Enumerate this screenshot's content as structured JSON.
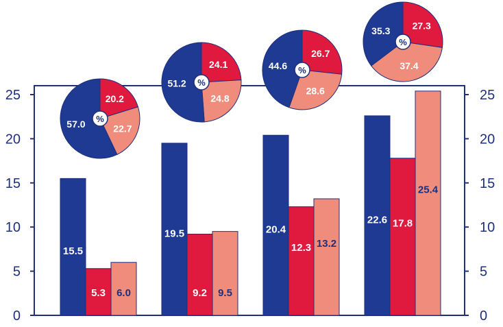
{
  "chart_data": {
    "type": "bar",
    "categories": [
      "",
      "",
      "",
      ""
    ],
    "series": [
      {
        "values": [
          15.5,
          19.5,
          20.4,
          22.6
        ]
      },
      {
        "values": [
          5.3,
          9.2,
          12.3,
          17.8
        ]
      },
      {
        "values": [
          6.0,
          9.5,
          13.2,
          25.4
        ]
      }
    ],
    "colors": [
      "#1f3a93",
      "#e0193f",
      "#ef8c7c"
    ],
    "label_colors": [
      "#ffffff",
      "#ffffff",
      "#1f2f7a"
    ],
    "ylim": [
      0,
      25
    ],
    "yticks": [
      "0",
      "5",
      "10",
      "15",
      "20",
      "25"
    ],
    "grid": false,
    "pies": [
      {
        "center_label": "%",
        "values": [
          57.0,
          20.2,
          22.7
        ],
        "labels": [
          "57.0",
          "20.2",
          "22.7"
        ]
      },
      {
        "center_label": "%",
        "values": [
          51.2,
          24.1,
          24.8
        ],
        "labels": [
          "51.2",
          "24.1",
          "24.8"
        ]
      },
      {
        "center_label": "%",
        "values": [
          44.6,
          26.7,
          28.6
        ],
        "labels": [
          "44.6",
          "26.7",
          "28.6"
        ]
      },
      {
        "center_label": "%",
        "values": [
          35.3,
          27.3,
          37.4
        ],
        "labels": [
          "35.3",
          "27.3",
          "37.4"
        ]
      }
    ]
  }
}
